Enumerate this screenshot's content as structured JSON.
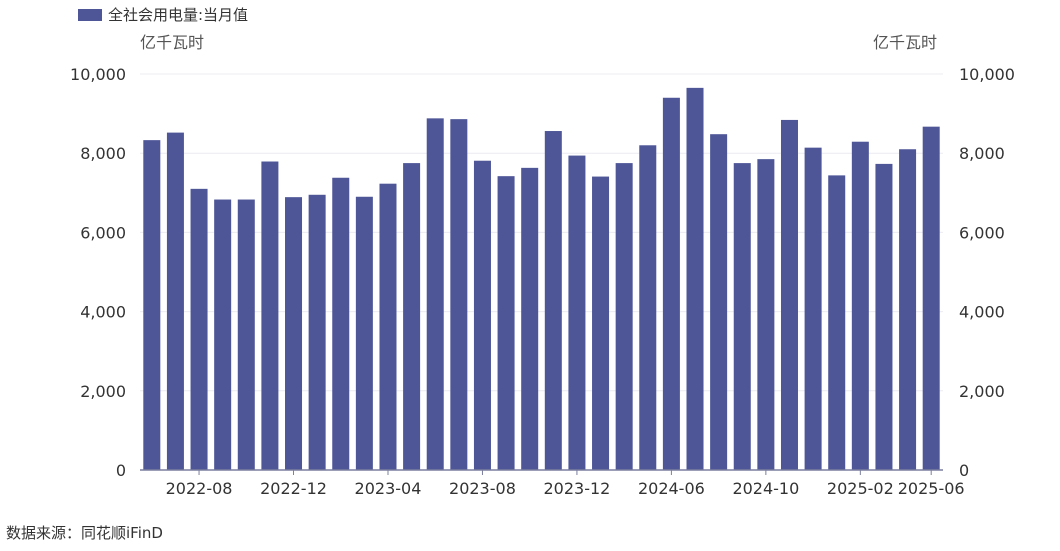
{
  "legend": {
    "label": "全社会用电量:当月值",
    "color": "#4e5698"
  },
  "axis_units": {
    "left": "亿千瓦时",
    "right": "亿千瓦时"
  },
  "source": "数据来源：同花顺iFinD",
  "chart_data": {
    "type": "bar",
    "title": "",
    "series": [
      {
        "name": "全社会用电量:当月值",
        "values": [
          8330,
          8520,
          7100,
          6830,
          6830,
          7790,
          6890,
          6950,
          7380,
          6900,
          7230,
          7750,
          8880,
          8860,
          7810,
          7420,
          7630,
          8560,
          7940,
          7410,
          7750,
          8200,
          9400,
          9650,
          8480,
          7750,
          7850,
          8840,
          8140,
          7440,
          8290,
          7730,
          8100,
          8670
        ]
      }
    ],
    "categories": [
      "2022-06",
      "2022-07",
      "2022-08",
      "2022-09",
      "2022-10",
      "2022-11",
      "2022-12",
      "2023-01",
      "2023-02",
      "2023-03",
      "2023-04",
      "2023-05",
      "2023-06",
      "2023-07",
      "2023-08",
      "2023-09",
      "2023-10",
      "2023-11",
      "2023-12",
      "2024-01",
      "2024-02",
      "2024-03",
      "2024-06",
      "2024-07",
      "2024-08",
      "2024-09",
      "2024-10",
      "2024-11",
      "2024-12",
      "2025-01",
      "2025-02",
      "2025-03",
      "2025-04",
      "2025-06"
    ],
    "x_tick_labels": [
      "2022-08",
      "2022-12",
      "2023-04",
      "2023-08",
      "2023-12",
      "2024-06",
      "2024-10",
      "2025-02",
      "2025-06"
    ],
    "x_tick_indices": [
      2,
      6,
      10,
      14,
      18,
      22,
      26,
      30,
      33
    ],
    "ylim": [
      0,
      10000
    ],
    "y_ticks": [
      "0",
      "2,000",
      "4,000",
      "6,000",
      "8,000",
      "10,000"
    ],
    "y_tick_values": [
      0,
      2000,
      4000,
      6000,
      8000,
      10000
    ],
    "grid": true,
    "legend_position": "top-left"
  }
}
